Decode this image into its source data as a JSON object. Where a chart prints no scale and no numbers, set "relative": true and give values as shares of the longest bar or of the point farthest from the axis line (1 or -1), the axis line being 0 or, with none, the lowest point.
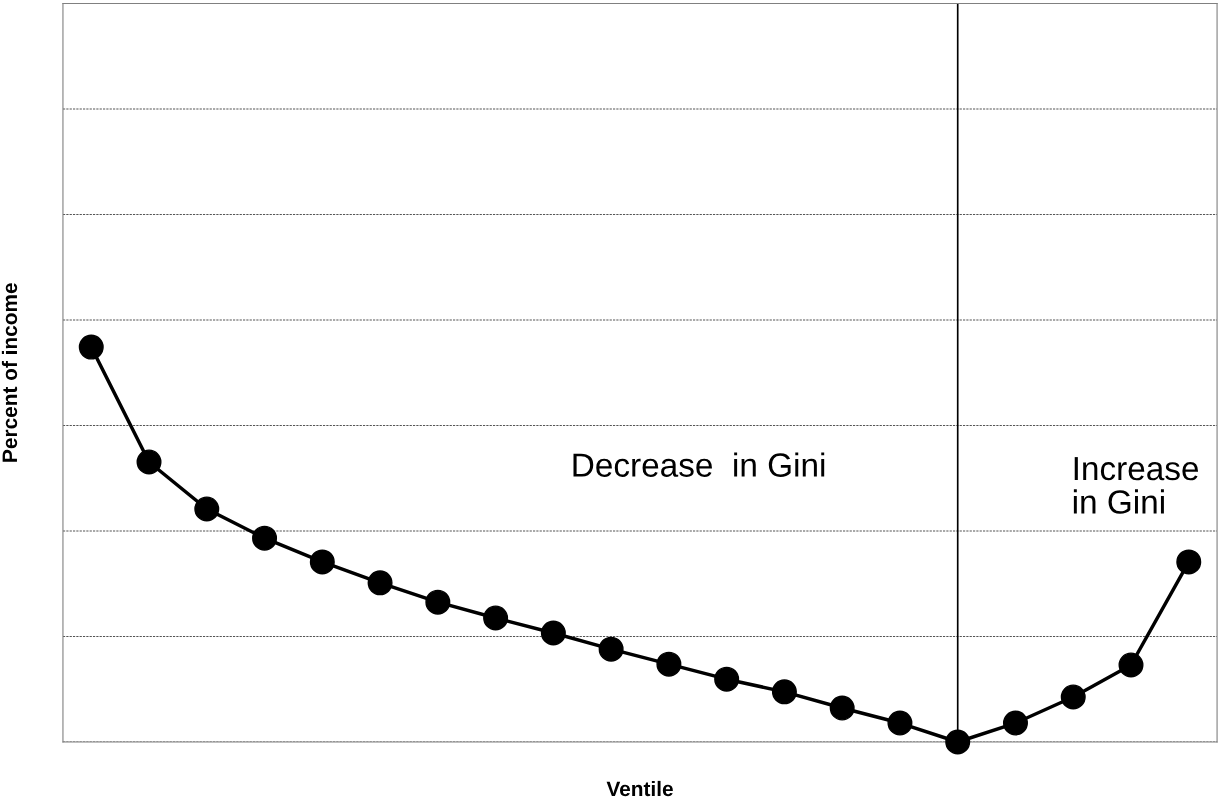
{
  "chart_data": {
    "type": "line",
    "relative": true,
    "xlabel": "Ventile",
    "ylabel": "Percent of income",
    "categories": [
      null,
      null,
      null,
      null,
      null,
      null,
      null,
      null,
      null,
      null,
      null,
      null,
      null,
      null,
      null,
      null,
      null,
      null,
      null,
      null
    ],
    "series": [
      {
        "color": "#000000",
        "values": [
          1,
          0.709,
          0.59,
          0.516,
          0.456,
          0.403,
          0.354,
          0.314,
          0.276,
          0.235,
          0.197,
          0.159,
          0.127,
          0.086,
          0.048,
          0,
          0.048,
          0.114,
          0.195,
          0.456
        ]
      }
    ],
    "annotations": [
      "Decrease  in Gini",
      "Increase\nin Gini"
    ],
    "marker": "circle",
    "line_style": "solid",
    "grid": "y",
    "tick_labels": false,
    "legend": false
  }
}
